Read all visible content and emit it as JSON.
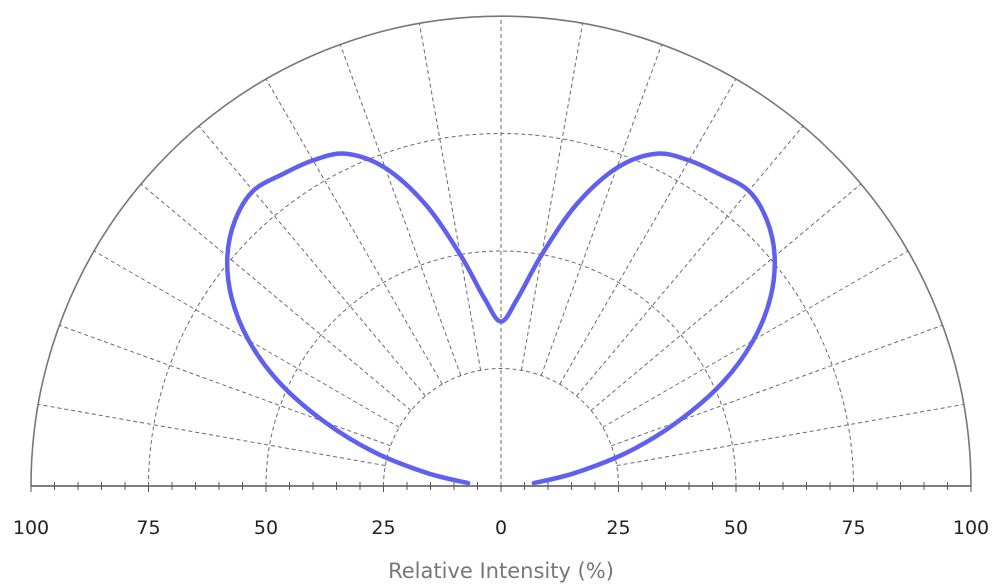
{
  "chart_data": {
    "type": "polar-half",
    "xlabel": "Relative Intensity (%)",
    "r_range": [
      0,
      100
    ],
    "ring_values": [
      25,
      50,
      75,
      100
    ],
    "x_tick_labels": [
      "100",
      "75",
      "50",
      "25",
      "0",
      "25",
      "50",
      "75",
      "100"
    ],
    "x_tick_values": [
      -100,
      -75,
      -50,
      -25,
      0,
      25,
      50,
      75,
      100
    ],
    "minor_tick_step": 5,
    "spokes_deg": [
      -80,
      -70,
      -60,
      -50,
      -40,
      -30,
      -20,
      -10,
      0,
      10,
      20,
      30,
      40,
      50,
      60,
      70,
      80
    ],
    "grid": true,
    "series": [
      {
        "color": "#6060f0",
        "angle_from_vertical_deg": [
          -85,
          -80,
          -75,
          -70,
          -65,
          -60,
          -55,
          -50,
          -45,
          -40,
          -35,
          -30,
          -25,
          -20,
          -15,
          -10,
          -5,
          0,
          5,
          10,
          15,
          20,
          25,
          30,
          35,
          40,
          45,
          50,
          55,
          60,
          65,
          70,
          75,
          80,
          85
        ],
        "relative_intensity_pct": [
          7,
          16,
          28,
          40,
          52,
          62,
          70,
          76,
          80,
          82,
          81,
          80,
          78,
          72,
          62,
          50,
          40,
          35,
          40,
          50,
          62,
          72,
          78,
          80,
          81,
          82,
          80,
          76,
          70,
          62,
          52,
          40,
          28,
          16,
          7
        ]
      }
    ]
  }
}
